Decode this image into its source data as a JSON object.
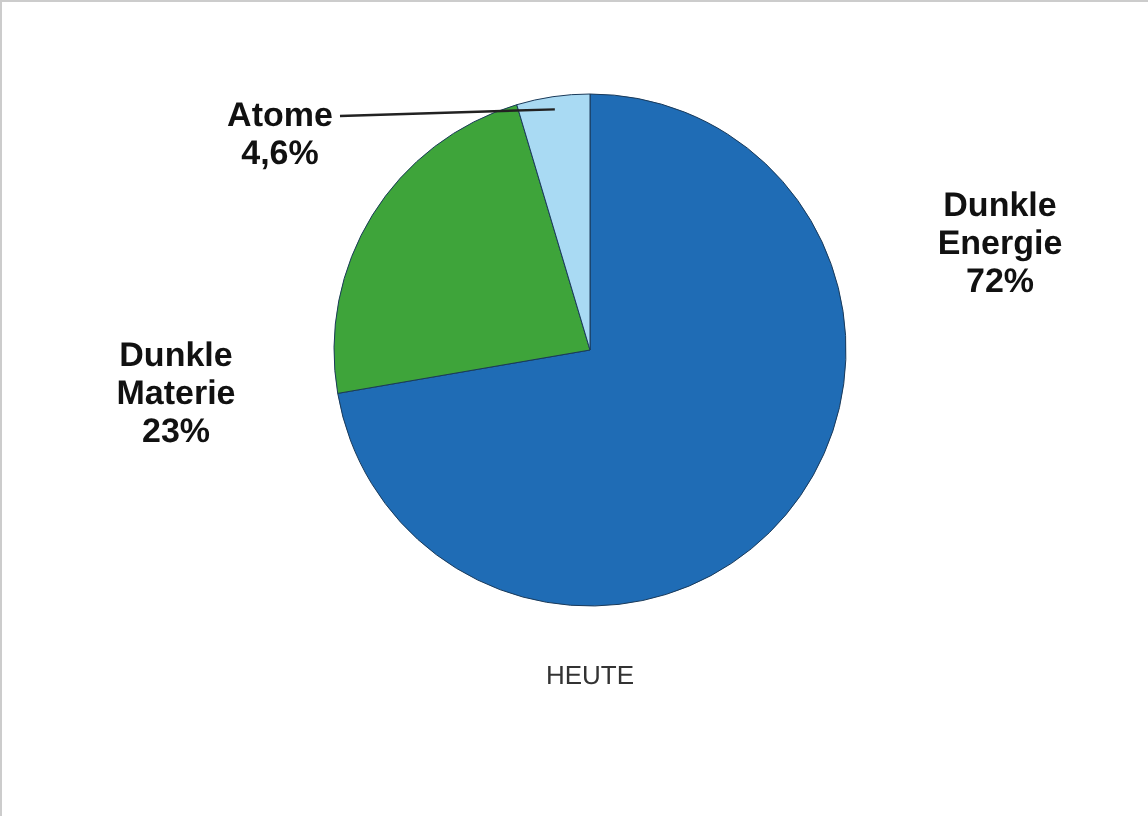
{
  "chart_data": {
    "type": "pie",
    "categories": [
      "Dunkle Energie",
      "Dunkle Materie",
      "Atome"
    ],
    "values": [
      72,
      23,
      4.6
    ],
    "colors": [
      "#1f6cb5",
      "#3ea43a",
      "#a9daf3"
    ],
    "value_labels": [
      "72%",
      "23%",
      "4,6%"
    ],
    "annotations": [
      "HEUTE"
    ]
  }
}
